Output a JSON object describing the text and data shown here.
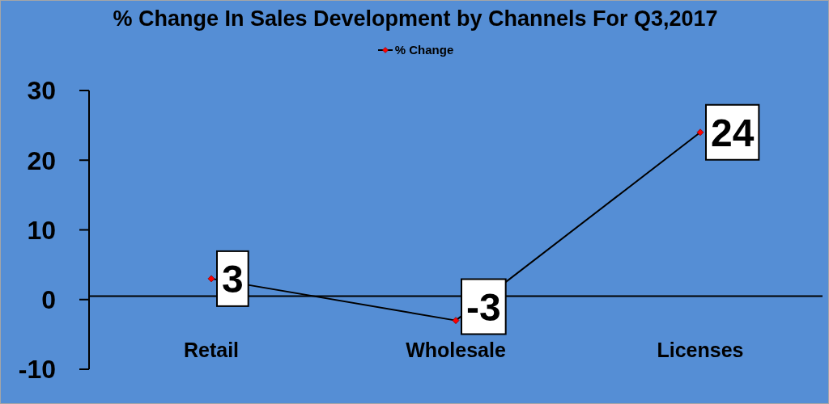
{
  "chart_data": {
    "type": "line",
    "title": "% Change In Sales Development by Channels For Q3,2017",
    "categories": [
      "Retail",
      "Wholesale",
      "Licenses"
    ],
    "series": [
      {
        "name": "% Change",
        "color": "#000000",
        "colors": [
          "#ff0000",
          "#ff0000",
          "#ff0000"
        ],
        "values": [
          3,
          -3,
          24
        ]
      }
    ],
    "ylim": [
      -10,
      30
    ],
    "yticks": [
      -10,
      0,
      10,
      20,
      30
    ],
    "legend": "top",
    "marker": "diamond",
    "line_style": "solid",
    "data_labels": true
  }
}
